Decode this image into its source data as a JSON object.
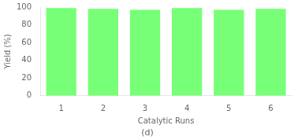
{
  "chart_data": {
    "type": "bar",
    "title": "(d)",
    "xlabel": "Catalytic Runs",
    "ylabel": "Yield (%)",
    "categories": [
      "1",
      "2",
      "3",
      "4",
      "5",
      "6"
    ],
    "values": [
      99,
      98,
      97,
      99,
      97,
      98
    ],
    "color": "#77ff77",
    "ylim": [
      0,
      100
    ],
    "yticks": [
      0,
      20,
      40,
      60,
      80,
      100
    ],
    "grid": false
  }
}
